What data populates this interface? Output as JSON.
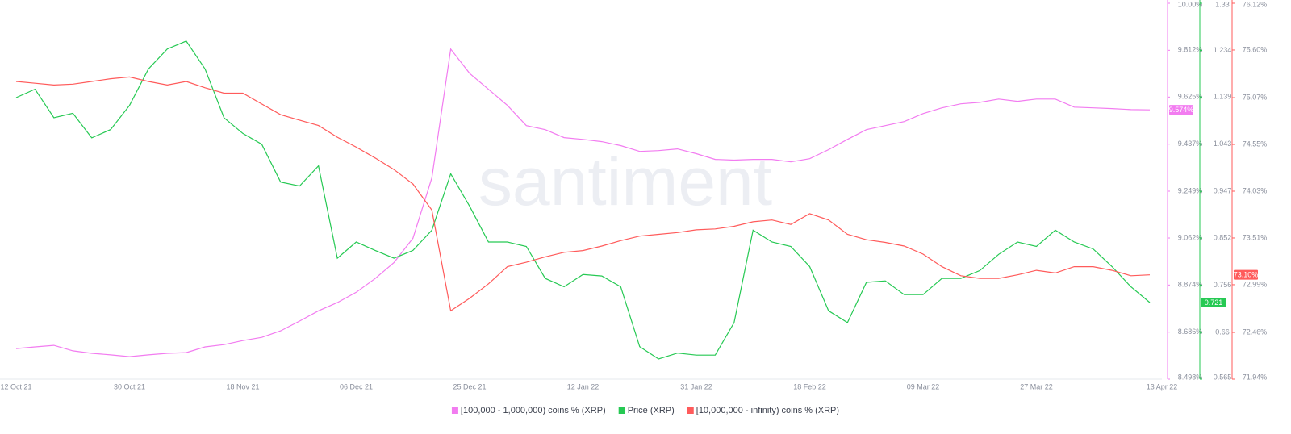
{
  "chart_data": {
    "type": "line",
    "watermark": "santiment",
    "grid": false,
    "categories": [
      "12 Oct 21",
      null,
      null,
      null,
      null,
      null,
      "30 Oct 21",
      null,
      null,
      null,
      null,
      null,
      "18 Nov 21",
      null,
      null,
      null,
      null,
      null,
      "06 Dec 21",
      null,
      null,
      null,
      null,
      null,
      "25 Dec 21",
      null,
      null,
      null,
      null,
      null,
      "12 Jan 22",
      null,
      null,
      null,
      null,
      null,
      "31 Jan 22",
      null,
      null,
      null,
      null,
      null,
      "18 Feb 22",
      null,
      null,
      null,
      null,
      null,
      "09 Mar 22",
      null,
      null,
      null,
      null,
      null,
      "27 Mar 22",
      null,
      null,
      null,
      null,
      null,
      "13 Apr 22"
    ],
    "ylim": [
      8.498,
      10.0
    ],
    "yticks": [
      {
        "value": 10.0,
        "label": "10.00%"
      },
      {
        "value": 9.812,
        "label": "9.812%"
      },
      {
        "value": 9.625,
        "label": "9.625%"
      },
      {
        "value": 9.437,
        "label": "9.437%"
      },
      {
        "value": 9.249,
        "label": "9.249%"
      },
      {
        "value": 9.062,
        "label": "9.062%"
      },
      {
        "value": 8.874,
        "label": "8.874%"
      },
      {
        "value": 8.686,
        "label": "8.686%"
      },
      {
        "value": 8.498,
        "label": "8.498%"
      }
    ],
    "y2lim": [
      0.565,
      1.33
    ],
    "y2ticks": [
      1.33,
      1.234,
      1.139,
      1.043,
      0.947,
      0.852,
      0.756,
      0.66,
      0.565
    ],
    "y3lim": [
      71.94,
      76.12
    ],
    "y3ticks": [
      {
        "value": 76.12,
        "label": "76.12%"
      },
      {
        "value": 75.6,
        "label": "75.60%"
      },
      {
        "value": 75.07,
        "label": "75.07%"
      },
      {
        "value": 74.55,
        "label": "74.55%"
      },
      {
        "value": 74.03,
        "label": "74.03%"
      },
      {
        "value": 73.51,
        "label": "73.51%"
      },
      {
        "value": 72.99,
        "label": "72.99%"
      },
      {
        "value": 72.46,
        "label": "72.46%"
      },
      {
        "value": 71.94,
        "label": "71.94%"
      }
    ],
    "series": [
      {
        "name": "[100,000  - 1,000,000) coins % (XRP)",
        "color": "#f27cf0",
        "axis": "y",
        "values": [
          8.62,
          8.627,
          8.633,
          8.611,
          8.601,
          8.595,
          8.588,
          8.595,
          8.601,
          8.604,
          8.627,
          8.636,
          8.652,
          8.665,
          8.691,
          8.73,
          8.771,
          8.804,
          8.845,
          8.9,
          8.964,
          9.061,
          9.302,
          9.817,
          9.72,
          9.656,
          9.592,
          9.511,
          9.495,
          9.463,
          9.456,
          9.447,
          9.431,
          9.408,
          9.411,
          9.418,
          9.399,
          9.376,
          9.373,
          9.376,
          9.376,
          9.366,
          9.379,
          9.415,
          9.456,
          9.495,
          9.511,
          9.527,
          9.559,
          9.582,
          9.598,
          9.604,
          9.617,
          9.608,
          9.617,
          9.617,
          9.585,
          9.582,
          9.579,
          9.575,
          9.574
        ],
        "value_labels": [
          null,
          null,
          null,
          null,
          null,
          null,
          null,
          null,
          null,
          null,
          null,
          null,
          null,
          null,
          null,
          null,
          null,
          null,
          null,
          null,
          null,
          null,
          null,
          null,
          null,
          null,
          null,
          null,
          null,
          null,
          null,
          null,
          null,
          null,
          null,
          null,
          null,
          null,
          null,
          null,
          null,
          null,
          null,
          null,
          null,
          null,
          null,
          null,
          null,
          null,
          null,
          null,
          null,
          null,
          null,
          null,
          null,
          null,
          null,
          null,
          "9.574%"
        ]
      },
      {
        "name": "Price (XRP)",
        "color": "#26c953",
        "axis": "y2",
        "values": [
          1.138,
          1.155,
          1.097,
          1.106,
          1.056,
          1.073,
          1.122,
          1.196,
          1.237,
          1.253,
          1.196,
          1.097,
          1.065,
          1.043,
          0.966,
          0.958,
          0.999,
          0.811,
          0.844,
          0.827,
          0.811,
          0.827,
          0.868,
          0.983,
          0.917,
          0.844,
          0.844,
          0.835,
          0.77,
          0.753,
          0.778,
          0.775,
          0.753,
          0.631,
          0.606,
          0.618,
          0.614,
          0.614,
          0.68,
          0.868,
          0.844,
          0.835,
          0.794,
          0.704,
          0.68,
          0.762,
          0.765,
          0.737,
          0.737,
          0.77,
          0.77,
          0.786,
          0.819,
          0.844,
          0.835,
          0.868,
          0.844,
          0.83,
          0.794,
          0.753,
          0.721
        ],
        "value_labels": [
          null,
          null,
          null,
          null,
          null,
          null,
          null,
          null,
          null,
          null,
          null,
          null,
          null,
          null,
          null,
          null,
          null,
          null,
          null,
          null,
          null,
          null,
          null,
          null,
          null,
          null,
          null,
          null,
          null,
          null,
          null,
          null,
          null,
          null,
          null,
          null,
          null,
          null,
          null,
          null,
          null,
          null,
          null,
          null,
          null,
          null,
          null,
          null,
          null,
          null,
          null,
          null,
          null,
          null,
          null,
          null,
          null,
          null,
          null,
          null,
          "0.721"
        ]
      },
      {
        "name": "[10,000,000 - infinity) coins % (XRP)",
        "color": "#ff5b5b",
        "axis": "y3",
        "values": [
          75.25,
          75.23,
          75.21,
          75.22,
          75.25,
          75.28,
          75.3,
          75.25,
          75.21,
          75.25,
          75.18,
          75.12,
          75.12,
          75.0,
          74.88,
          74.82,
          74.76,
          74.63,
          74.52,
          74.4,
          74.27,
          74.11,
          73.82,
          72.7,
          72.84,
          73.0,
          73.19,
          73.24,
          73.3,
          73.35,
          73.37,
          73.42,
          73.48,
          73.53,
          73.55,
          73.57,
          73.6,
          73.61,
          73.64,
          73.69,
          73.71,
          73.66,
          73.78,
          73.71,
          73.55,
          73.49,
          73.46,
          73.42,
          73.33,
          73.19,
          73.09,
          73.06,
          73.06,
          73.1,
          73.15,
          73.12,
          73.19,
          73.19,
          73.15,
          73.09,
          73.1
        ],
        "value_labels": [
          null,
          null,
          null,
          null,
          null,
          null,
          null,
          null,
          null,
          null,
          null,
          null,
          null,
          null,
          null,
          null,
          null,
          null,
          null,
          null,
          null,
          null,
          null,
          null,
          null,
          null,
          null,
          null,
          null,
          null,
          null,
          null,
          null,
          null,
          null,
          null,
          null,
          null,
          null,
          null,
          null,
          null,
          null,
          null,
          null,
          null,
          null,
          null,
          null,
          null,
          null,
          null,
          null,
          null,
          null,
          null,
          null,
          null,
          null,
          null,
          "73.10%"
        ]
      }
    ]
  }
}
